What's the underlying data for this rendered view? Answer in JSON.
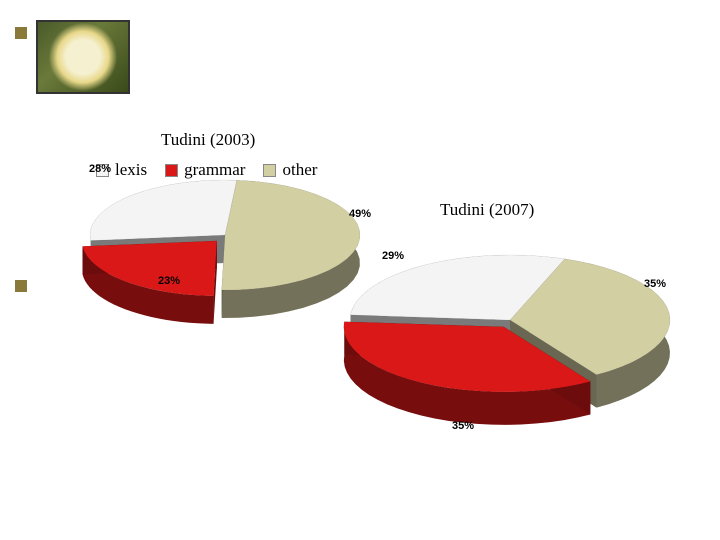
{
  "decorative_image_alt": "flower-photo",
  "chart1": {
    "title": "Tudini (2003)",
    "type": "pie3d",
    "slices": [
      {
        "name": "other",
        "value": 49,
        "label": "49%",
        "color": "#d2cfa3"
      },
      {
        "name": "grammar",
        "value": 23,
        "label": "23%",
        "color": "#db1818"
      },
      {
        "name": "lexis",
        "value": 28,
        "label": "28%",
        "color": "#f4f4f4"
      }
    ],
    "side_color": "#7a7a7a",
    "title_fontsize": 17
  },
  "chart2": {
    "title": "Tudini (2007)",
    "type": "pie3d",
    "slices": [
      {
        "name": "other",
        "value": 35,
        "label": "35%",
        "color": "#d2cfa3"
      },
      {
        "name": "grammar",
        "value": 35,
        "label": "35%",
        "color": "#db1818"
      },
      {
        "name": "lexis",
        "value": 29,
        "label": "29%",
        "color": "#f4f4f4"
      }
    ],
    "side_color": "#7a7a7a",
    "title_fontsize": 17
  },
  "legend": {
    "items": [
      {
        "label": "lexis",
        "color": "#f4f4f4"
      },
      {
        "label": "grammar",
        "color": "#db1818"
      },
      {
        "label": "other",
        "color": "#d2cfa3"
      }
    ],
    "fontsize": 17
  },
  "background_color": "#ffffff",
  "bullet_color": "#8a7a3a"
}
